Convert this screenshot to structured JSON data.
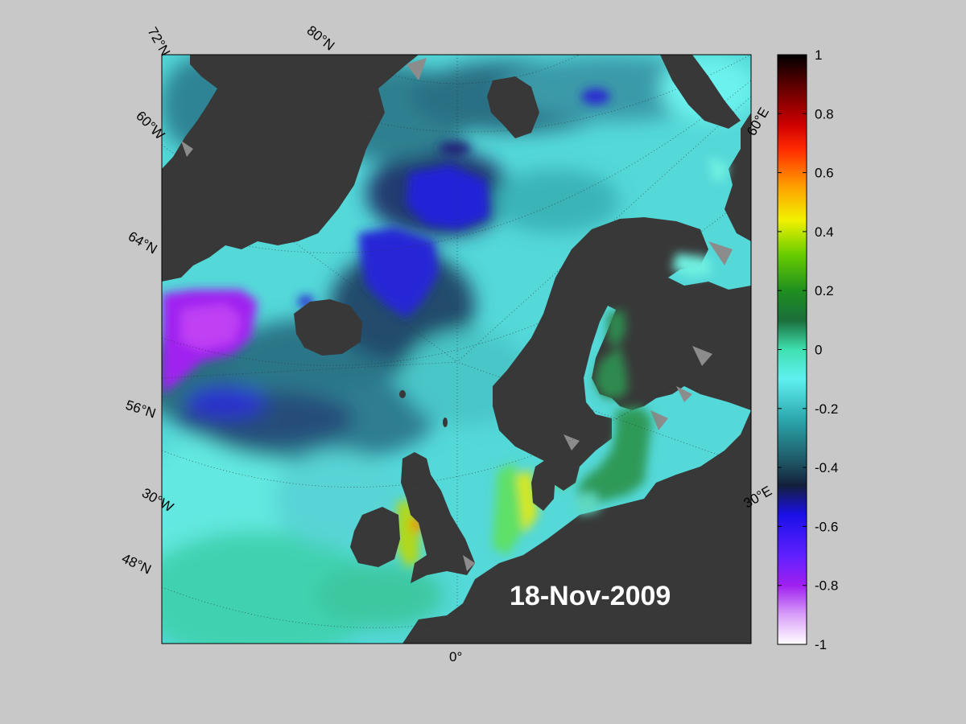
{
  "map": {
    "date_label": "18-Nov-2009",
    "land_color": "#383838",
    "ice_color": "#8c8c8c",
    "grid_labels": {
      "lat_72": "72°N",
      "lat_60w": "60°W",
      "lat_64": "64°N",
      "lat_56": "56°N",
      "lon_30w": "30°W",
      "lat_48": "48°N",
      "lon_80n": "80°N",
      "lon_60e": "60°E",
      "lon_30e": "30°E",
      "lon_0": "0°"
    }
  },
  "colorbar": {
    "min": -1,
    "max": 1,
    "ticks": [
      "1",
      "0.8",
      "0.6",
      "0.4",
      "0.2",
      "0",
      "-0.2",
      "-0.4",
      "-0.6",
      "-0.8",
      "-1"
    ],
    "colors": {
      "top": "#000000",
      "red": "#ff0000",
      "orange": "#ff9900",
      "yellow": "#f2f200",
      "green": "#1f8f1f",
      "teal": "#3fe0b0",
      "cyan": "#5ff0f0",
      "dark_teal": "#1c4a5a",
      "blue": "#1a10e8",
      "purple": "#a020f0",
      "bottom": "#ffffff"
    }
  }
}
